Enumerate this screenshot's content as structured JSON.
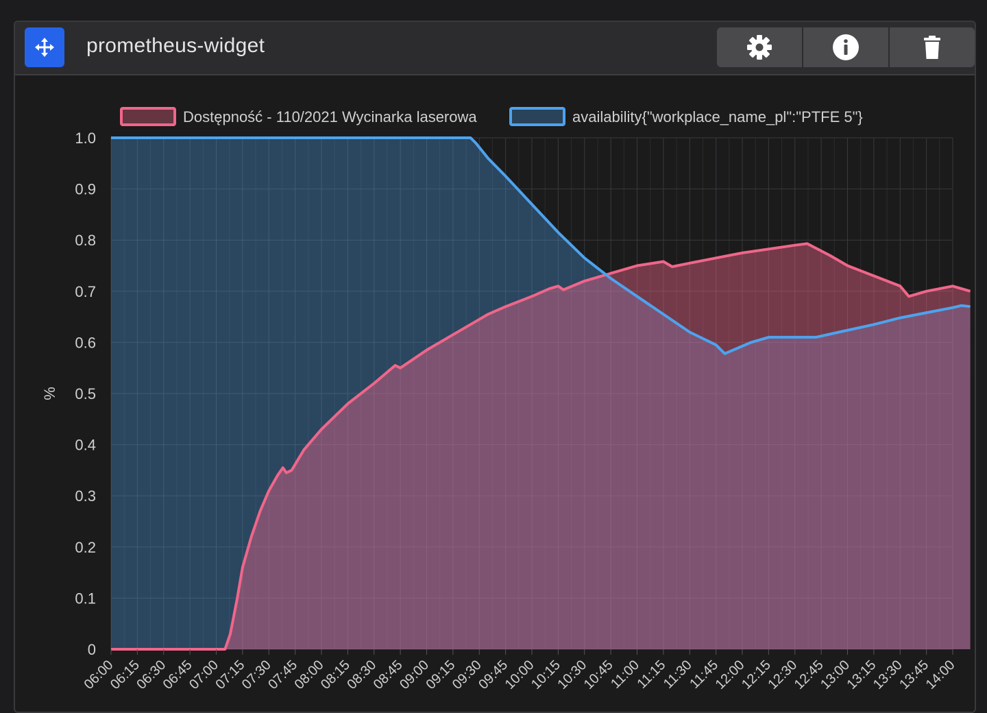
{
  "widget": {
    "title": "prometheus-widget",
    "actions": [
      {
        "name": "settings",
        "icon": "gear-icon"
      },
      {
        "name": "info",
        "icon": "info-icon"
      },
      {
        "name": "delete",
        "icon": "trash-icon"
      }
    ],
    "move_icon": "move-arrows-icon"
  },
  "colors": {
    "accent": "#2563eb",
    "series_pink": "#f0668a",
    "series_blue": "#4da3ee",
    "grid": "#3a3a3c",
    "text": "#d0d0d2"
  },
  "chart_data": {
    "type": "area",
    "ylabel": "%",
    "ylim": [
      0,
      1
    ],
    "yticks": [
      "0",
      "0.1",
      "0.2",
      "0.3",
      "0.4",
      "0.5",
      "0.6",
      "0.7",
      "0.8",
      "0.9",
      "1.0"
    ],
    "xlim": [
      "06:00",
      "14:00"
    ],
    "xticks": [
      "06:00",
      "06:15",
      "06:30",
      "06:45",
      "07:00",
      "07:15",
      "07:30",
      "07:45",
      "08:00",
      "08:15",
      "08:30",
      "08:45",
      "09:00",
      "09:15",
      "09:30",
      "09:45",
      "10:00",
      "10:15",
      "10:30",
      "10:45",
      "11:00",
      "11:15",
      "11:30",
      "11:45",
      "12:00",
      "12:15",
      "12:30",
      "12:45",
      "13:00",
      "13:15",
      "13:30",
      "13:45",
      "14:00"
    ],
    "grid": true,
    "legend": "top",
    "series": [
      {
        "name": "Dostępność - 110/2021 Wycinarka laserowa",
        "color": "#f0668a",
        "points": [
          [
            "06:00",
            0
          ],
          [
            "07:05",
            0
          ],
          [
            "07:08",
            0.03
          ],
          [
            "07:12",
            0.1
          ],
          [
            "07:15",
            0.16
          ],
          [
            "07:20",
            0.22
          ],
          [
            "07:25",
            0.27
          ],
          [
            "07:30",
            0.31
          ],
          [
            "07:35",
            0.34
          ],
          [
            "07:38",
            0.355
          ],
          [
            "07:40",
            0.345
          ],
          [
            "07:43",
            0.35
          ],
          [
            "07:50",
            0.39
          ],
          [
            "08:00",
            0.43
          ],
          [
            "08:15",
            0.48
          ],
          [
            "08:30",
            0.52
          ],
          [
            "08:42",
            0.555
          ],
          [
            "08:45",
            0.55
          ],
          [
            "09:00",
            0.585
          ],
          [
            "09:15",
            0.615
          ],
          [
            "09:30",
            0.645
          ],
          [
            "09:35",
            0.655
          ],
          [
            "09:45",
            0.67
          ],
          [
            "10:00",
            0.69
          ],
          [
            "10:10",
            0.705
          ],
          [
            "10:15",
            0.71
          ],
          [
            "10:18",
            0.703
          ],
          [
            "10:30",
            0.72
          ],
          [
            "10:45",
            0.735
          ],
          [
            "11:00",
            0.75
          ],
          [
            "11:15",
            0.758
          ],
          [
            "11:20",
            0.748
          ],
          [
            "11:30",
            0.755
          ],
          [
            "11:45",
            0.765
          ],
          [
            "12:00",
            0.775
          ],
          [
            "12:30",
            0.79
          ],
          [
            "12:37",
            0.793
          ],
          [
            "12:50",
            0.77
          ],
          [
            "13:00",
            0.75
          ],
          [
            "13:15",
            0.73
          ],
          [
            "13:30",
            0.71
          ],
          [
            "13:35",
            0.69
          ],
          [
            "13:45",
            0.7
          ],
          [
            "14:00",
            0.71
          ],
          [
            "14:05",
            0.705
          ],
          [
            "14:10",
            0.7
          ]
        ]
      },
      {
        "name": "availability{\"workplace_name_pl\":\"PTFE 5\"}",
        "color": "#4da3ee",
        "points": [
          [
            "06:00",
            1.0
          ],
          [
            "09:25",
            1.0
          ],
          [
            "09:28",
            0.99
          ],
          [
            "09:35",
            0.96
          ],
          [
            "09:45",
            0.925
          ],
          [
            "10:00",
            0.87
          ],
          [
            "10:15",
            0.815
          ],
          [
            "10:30",
            0.765
          ],
          [
            "10:45",
            0.725
          ],
          [
            "11:00",
            0.69
          ],
          [
            "11:15",
            0.655
          ],
          [
            "11:30",
            0.62
          ],
          [
            "11:45",
            0.595
          ],
          [
            "11:50",
            0.578
          ],
          [
            "12:05",
            0.6
          ],
          [
            "12:15",
            0.61
          ],
          [
            "12:42",
            0.61
          ],
          [
            "12:55",
            0.62
          ],
          [
            "13:15",
            0.635
          ],
          [
            "13:30",
            0.648
          ],
          [
            "13:45",
            0.658
          ],
          [
            "14:00",
            0.668
          ],
          [
            "14:05",
            0.672
          ],
          [
            "14:10",
            0.67
          ]
        ]
      }
    ]
  }
}
